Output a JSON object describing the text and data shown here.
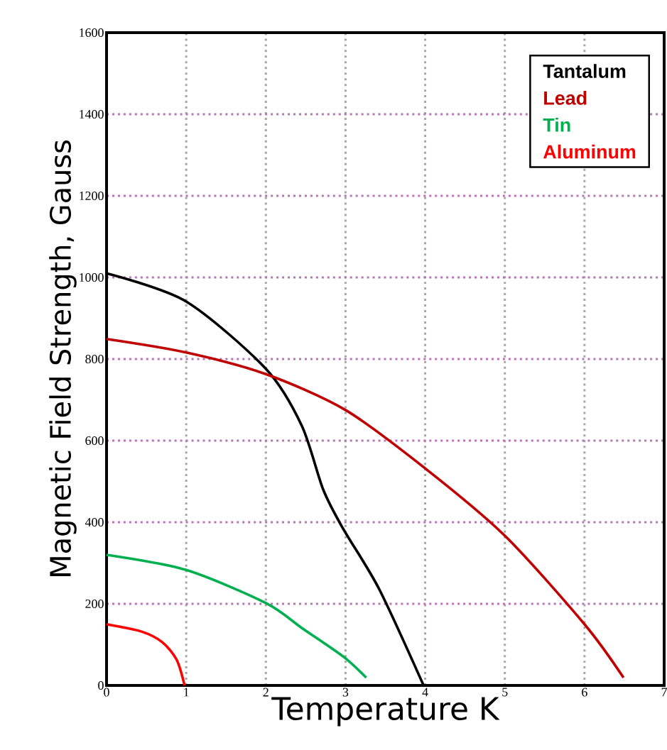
{
  "chart_data": {
    "type": "line",
    "xlabel": "Temperature K",
    "ylabel": "Magnetic Field Strength, Gauss",
    "xlim": [
      0,
      7
    ],
    "ylim": [
      0,
      1600
    ],
    "xticks": [
      0,
      1,
      2,
      3,
      4,
      5,
      6,
      7
    ],
    "yticks": [
      0,
      200,
      400,
      600,
      800,
      1000,
      1200,
      1400,
      1600
    ],
    "grid": true,
    "legend": "top right",
    "line_style": "solid",
    "marker": "none",
    "series": [
      {
        "name": "Tantalum",
        "color": "#000000",
        "x": [
          0,
          1,
          2,
          2.45,
          2.72,
          2.97,
          3.42,
          3.98
        ],
        "values": [
          1010,
          941,
          776,
          637,
          480,
          384,
          237,
          0
        ]
      },
      {
        "name": "Lead",
        "color": "#c00000",
        "x": [
          0,
          1,
          2,
          3,
          4,
          5,
          6,
          6.49
        ],
        "values": [
          849,
          816,
          763,
          675,
          532,
          367,
          150,
          19
        ]
      },
      {
        "name": "Tin",
        "color": "#00b050",
        "x": [
          0,
          1,
          2,
          2.45,
          2.97,
          3.26
        ],
        "values": [
          320,
          283,
          202,
          141,
          71,
          19
        ]
      },
      {
        "name": "Aluminum",
        "color": "#ff0000",
        "x": [
          0,
          0.44,
          0.7,
          0.88,
          0.98
        ],
        "values": [
          150,
          132,
          106,
          63,
          0
        ]
      }
    ]
  }
}
